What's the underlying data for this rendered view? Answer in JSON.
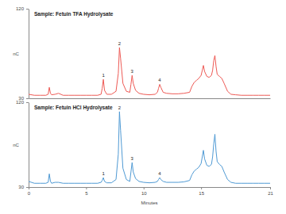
{
  "chart_data": [
    {
      "type": "line",
      "title": "Sample: Fetuin TFA Hydrolysate",
      "ylabel": "nC",
      "xlim": [
        0,
        21
      ],
      "ylim": [
        30,
        120
      ],
      "yticks": [
        30,
        120
      ],
      "tick_labels": "y",
      "x": [
        0,
        0.5,
        1,
        1.5,
        1.7,
        1.8,
        1.9,
        2.0,
        2.3,
        2.6,
        3,
        3.5,
        4,
        4.5,
        5,
        5.5,
        6,
        6.3,
        6.4,
        6.5,
        6.6,
        6.8,
        7.2,
        7.6,
        7.8,
        7.9,
        8.0,
        8.2,
        8.5,
        8.8,
        8.9,
        9.0,
        9.1,
        9.3,
        9.6,
        10,
        10.5,
        11,
        11.2,
        11.3,
        11.4,
        11.5,
        11.7,
        12,
        12.5,
        13,
        13.5,
        14,
        14.2,
        14.4,
        14.6,
        14.8,
        15.0,
        15.1,
        15.2,
        15.3,
        15.5,
        15.7,
        15.9,
        16.0,
        16.1,
        16.2,
        16.3,
        16.4,
        16.6,
        16.8,
        17.0,
        17.3,
        17.6,
        18,
        18.5,
        19,
        19.5,
        20,
        20.5,
        21
      ],
      "series": [
        {
          "color": "#ee5a55",
          "values": [
            34,
            33,
            33,
            33,
            34,
            41,
            35,
            33.5,
            34,
            35,
            33,
            33,
            33,
            33,
            33,
            33,
            33,
            34,
            40,
            49,
            38,
            34,
            34,
            37,
            55,
            81,
            70,
            45,
            37,
            36,
            44,
            53,
            45,
            38,
            35,
            34,
            33.5,
            34,
            36,
            40,
            44,
            41,
            36,
            35,
            34.5,
            34.5,
            35,
            36,
            42,
            46,
            48,
            50,
            53,
            58,
            63,
            57,
            52,
            51,
            53,
            58,
            68,
            73,
            62,
            54,
            52,
            50,
            45,
            37,
            34,
            33.5,
            33,
            33,
            33,
            33,
            33,
            33
          ]
        }
      ],
      "annotations": [
        {
          "x": 6.5,
          "text": "1"
        },
        {
          "x": 7.9,
          "text": "2"
        },
        {
          "x": 9.0,
          "text": "3"
        },
        {
          "x": 11.4,
          "text": "4"
        }
      ]
    },
    {
      "type": "line",
      "title": "Sample: Fetuin HCl Hydrolysate",
      "ylabel": "nC",
      "xlabel": "Minutes",
      "xlim": [
        0,
        21
      ],
      "xticks": [
        0,
        5,
        10,
        15,
        21
      ],
      "ylim": [
        30,
        120
      ],
      "yticks": [
        30,
        120
      ],
      "x": [
        0,
        0.5,
        1,
        1.5,
        1.7,
        1.8,
        1.9,
        2.0,
        2.3,
        2.6,
        3,
        3.5,
        4,
        4.5,
        5,
        5.5,
        6,
        6.3,
        6.4,
        6.5,
        6.6,
        6.8,
        7.2,
        7.6,
        7.8,
        7.9,
        8.0,
        8.2,
        8.5,
        8.8,
        8.9,
        9.0,
        9.1,
        9.3,
        9.6,
        10,
        10.5,
        11,
        11.2,
        11.3,
        11.4,
        11.5,
        11.7,
        12,
        12.5,
        13,
        13.5,
        14,
        14.2,
        14.4,
        14.6,
        14.8,
        15.0,
        15.1,
        15.2,
        15.3,
        15.5,
        15.7,
        15.9,
        16.0,
        16.1,
        16.2,
        16.3,
        16.4,
        16.6,
        16.8,
        17.0,
        17.3,
        17.6,
        18,
        18.5,
        19,
        19.5,
        20,
        20.5,
        21
      ],
      "series": [
        {
          "color": "#4f9ad4",
          "values": [
            36,
            34,
            34,
            34,
            35,
            44,
            36,
            34,
            35,
            35,
            34,
            34,
            34,
            34,
            34,
            34,
            34,
            35,
            37,
            40,
            36,
            34.5,
            34.5,
            38,
            65,
            110,
            90,
            50,
            38,
            36,
            46,
            56,
            46,
            39,
            36,
            35,
            34.5,
            35,
            36,
            38,
            40,
            38,
            36,
            35,
            35,
            35,
            35.5,
            37,
            43,
            47,
            49,
            51,
            55,
            62,
            69,
            60,
            53,
            52,
            54,
            62,
            76,
            86,
            68,
            57,
            54,
            52,
            46,
            38,
            35,
            34,
            34,
            34,
            34,
            34,
            34,
            34
          ]
        }
      ],
      "annotations": [
        {
          "x": 6.5,
          "text": "1"
        },
        {
          "x": 7.9,
          "text": "2"
        },
        {
          "x": 9.0,
          "text": "3"
        },
        {
          "x": 11.4,
          "text": "4"
        }
      ]
    }
  ]
}
